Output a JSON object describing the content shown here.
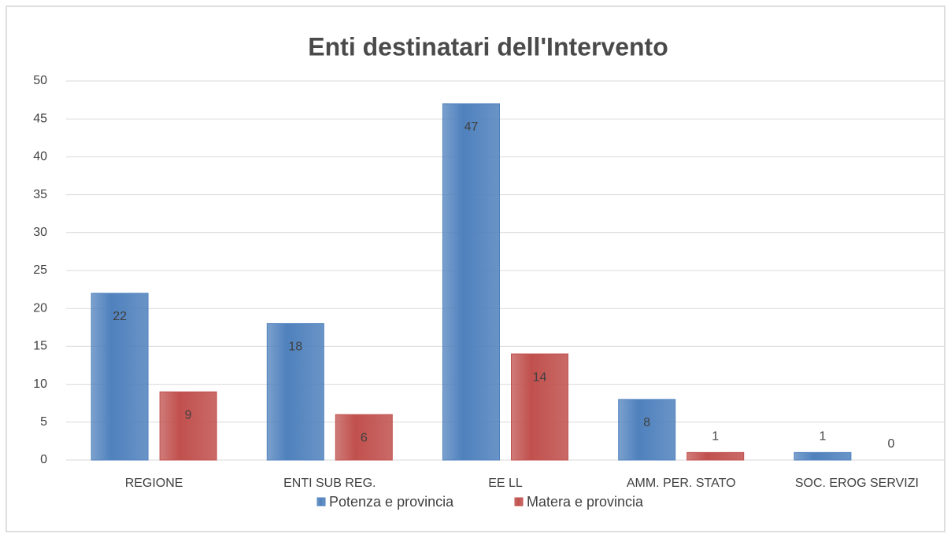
{
  "chart_data": {
    "type": "bar",
    "title": "Enti destinatari dell'Intervento",
    "categories": [
      "REGIONE",
      "ENTI SUB REG.",
      "EE LL",
      "AMM. PER. STATO",
      "SOC. EROG SERVIZI"
    ],
    "series": [
      {
        "name": "Potenza e provincia",
        "color": "#4f81bd",
        "values": [
          22,
          18,
          47,
          8,
          1
        ]
      },
      {
        "name": "Matera e provincia",
        "color": "#c0504d",
        "values": [
          9,
          6,
          14,
          1,
          0
        ]
      }
    ],
    "ylim": [
      0,
      50
    ],
    "yticks": [
      0,
      5,
      10,
      15,
      20,
      25,
      30,
      35,
      40,
      45,
      50
    ],
    "grid": true,
    "legend": "bottom"
  }
}
